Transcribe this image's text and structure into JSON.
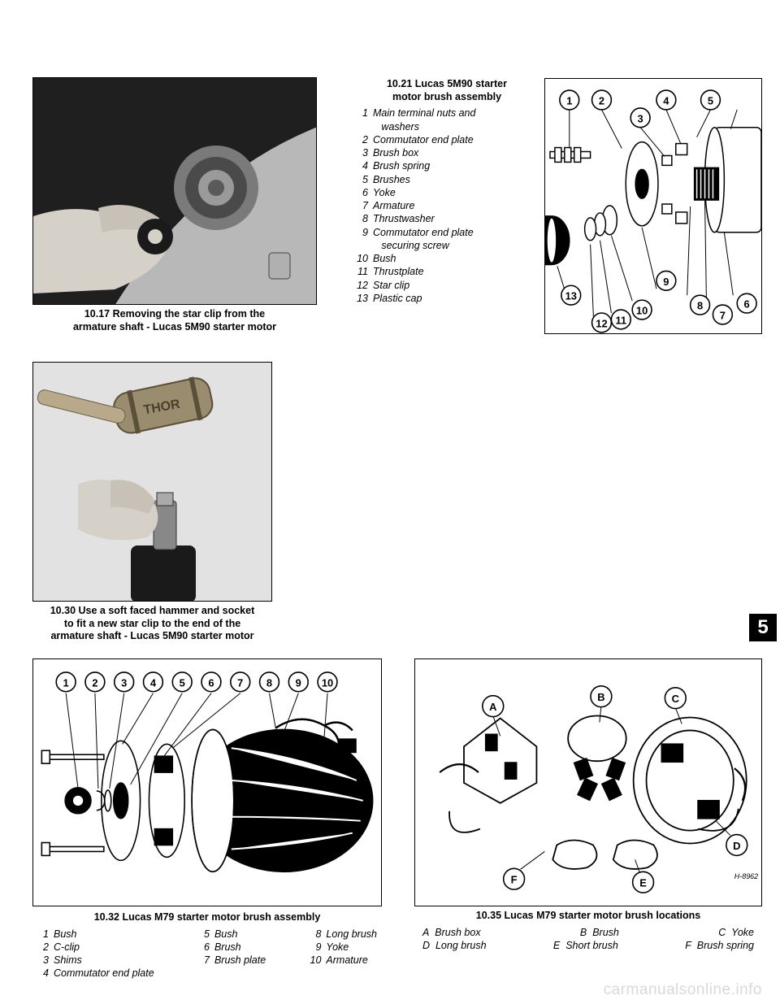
{
  "fig1017": {
    "caption": "10.17 Removing the star clip from the\narmature shaft - Lucas 5M90 starter motor"
  },
  "box1021": {
    "title": "10.21 Lucas 5M90 starter\nmotor brush assembly",
    "items": [
      {
        "n": "1",
        "t": "Main terminal nuts and\nwashers"
      },
      {
        "n": "2",
        "t": "Commutator end plate"
      },
      {
        "n": "3",
        "t": "Brush box"
      },
      {
        "n": "4",
        "t": "Brush spring"
      },
      {
        "n": "5",
        "t": "Brushes"
      },
      {
        "n": "6",
        "t": "Yoke"
      },
      {
        "n": "7",
        "t": "Armature"
      },
      {
        "n": "8",
        "t": "Thrustwasher"
      },
      {
        "n": "9",
        "t": "Commutator end plate\nsecuring screw"
      },
      {
        "n": "10",
        "t": "Bush"
      },
      {
        "n": "11",
        "t": "Thrustplate"
      },
      {
        "n": "12",
        "t": "Star clip"
      },
      {
        "n": "13",
        "t": "Plastic cap"
      }
    ],
    "diagram": {
      "circle_stroke": "#000000",
      "circle_fill": "#ffffff",
      "labels": [
        "1",
        "2",
        "3",
        "4",
        "5",
        "6",
        "7",
        "8",
        "9",
        "10",
        "11",
        "12",
        "13"
      ]
    }
  },
  "fig1030": {
    "caption": "10.30 Use a soft faced hammer and socket\nto fit a new star clip to the end of the\narmature shaft - Lucas 5M90 starter motor"
  },
  "sideTab": "5",
  "fig1032": {
    "caption_title": "10.32 Lucas M79 starter motor brush assembly",
    "legend": [
      {
        "n": "1",
        "t": "Bush"
      },
      {
        "n": "2",
        "t": "C-clip"
      },
      {
        "n": "3",
        "t": "Shims"
      },
      {
        "n": "4",
        "t": "Commutator end plate"
      },
      {
        "n": "5",
        "t": "Bush"
      },
      {
        "n": "6",
        "t": "Brush"
      },
      {
        "n": "7",
        "t": "Brush plate"
      },
      {
        "n": "8",
        "t": "Long brush"
      },
      {
        "n": "9",
        "t": "Yoke"
      },
      {
        "n": "10",
        "t": "Armature"
      }
    ],
    "labels": [
      "1",
      "2",
      "3",
      "4",
      "5",
      "6",
      "7",
      "8",
      "9",
      "10"
    ]
  },
  "fig1035": {
    "caption_title": "10.35 Lucas M79 starter motor brush locations",
    "legend_lines": [
      [
        {
          "k": "A",
          "v": "Brush box"
        },
        {
          "k": "B",
          "v": "Brush"
        },
        {
          "k": "C",
          "v": "Yoke"
        }
      ],
      [
        {
          "k": "D",
          "v": "Long brush"
        },
        {
          "k": "E",
          "v": "Short brush"
        },
        {
          "k": "F",
          "v": "Brush spring"
        }
      ]
    ],
    "labels": [
      "A",
      "B",
      "C",
      "D",
      "E",
      "F"
    ]
  },
  "watermark": "carmanualsonline.info",
  "colors": {
    "text": "#000000",
    "background": "#ffffff",
    "watermark": "#d9d9d9",
    "photo_bg_dark": "#2a2a2a",
    "photo_bg_mid": "#888888"
  }
}
